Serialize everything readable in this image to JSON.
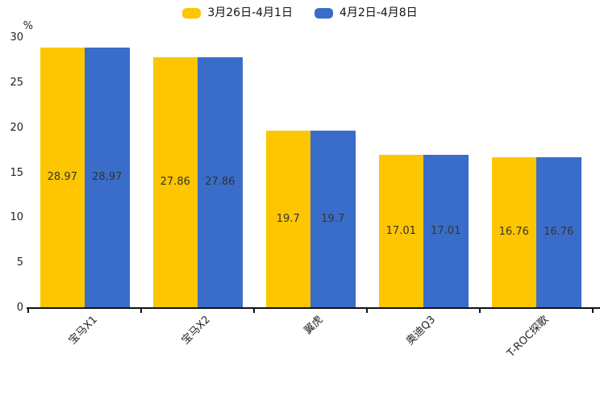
{
  "chart_data": {
    "type": "bar",
    "title": "",
    "xlabel": "",
    "ylabel": "%",
    "categories": [
      "宝马X1",
      "宝马X2",
      "翼虎",
      "奥迪Q3",
      "T-ROC探歌"
    ],
    "series": [
      {
        "name": "3月26日-4月1日",
        "color": "#FDC600",
        "values": [
          28.97,
          27.86,
          19.7,
          17.01,
          16.76
        ]
      },
      {
        "name": "4月2日-4月8日",
        "color": "#3A6DC9",
        "values": [
          28.97,
          27.86,
          19.7,
          17.01,
          16.76
        ]
      }
    ],
    "ylim": [
      0,
      30
    ],
    "yticks": [
      0,
      5,
      10,
      15,
      20,
      25,
      30
    ],
    "legend_position": "top",
    "grid": false,
    "bar_value_labels": true,
    "x_tick_label_rotation": 45
  },
  "styles": {
    "background": "#ffffff",
    "axis_color": "#111111",
    "tick_label_color": "#222222",
    "value_label_color": "#333333",
    "legend_text_color": "#111111"
  }
}
